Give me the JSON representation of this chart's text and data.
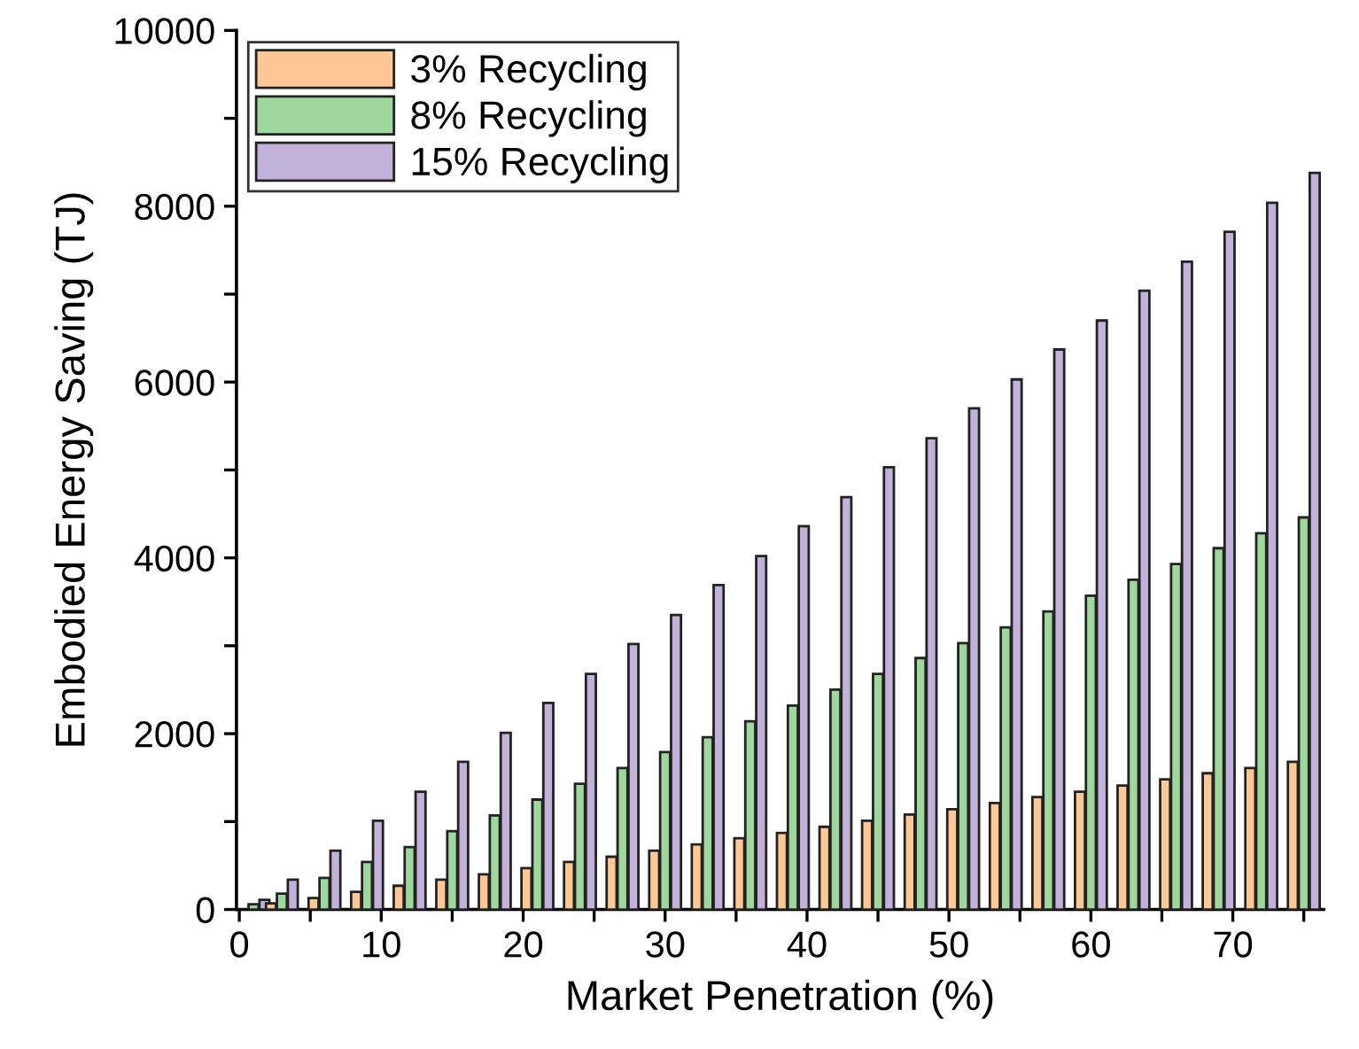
{
  "chart_data": {
    "type": "bar",
    "xlabel": "Market Penetration (%)",
    "ylabel": "Embodied Energy Saving (TJ)",
    "x": [
      1,
      3,
      6,
      9,
      12,
      15,
      18,
      21,
      24,
      27,
      30,
      33,
      36,
      39,
      42,
      45,
      48,
      51,
      54,
      57,
      60,
      63,
      66,
      69,
      72,
      75
    ],
    "series": [
      {
        "name": "3% Recycling",
        "color": "#fdc896",
        "values": [
          null,
          70,
          130,
          200,
          270,
          340,
          400,
          470,
          540,
          600,
          670,
          740,
          810,
          870,
          940,
          1010,
          1080,
          1140,
          1210,
          1280,
          1340,
          1410,
          1480,
          1550,
          1610,
          1680
        ]
      },
      {
        "name": "8% Recycling",
        "color": "#9fd89c",
        "values": [
          60,
          180,
          360,
          540,
          710,
          890,
          1070,
          1250,
          1430,
          1610,
          1790,
          1960,
          2140,
          2320,
          2500,
          2680,
          2860,
          3030,
          3210,
          3390,
          3570,
          3750,
          3930,
          4110,
          4280,
          4460
        ]
      },
      {
        "name": "15% Recycling",
        "color": "#c2b1d9",
        "values": [
          110,
          340,
          670,
          1010,
          1340,
          1680,
          2010,
          2350,
          2680,
          3020,
          3350,
          3690,
          4020,
          4360,
          4690,
          5030,
          5360,
          5700,
          6030,
          6370,
          6700,
          7040,
          7370,
          7710,
          8040,
          8380
        ]
      }
    ],
    "xlim": [
      -0.2,
      76.4
    ],
    "ylim": [
      0,
      10000
    ],
    "xticks": [
      0,
      {
        "value": 5,
        "label": null
      },
      10,
      {
        "value": 15,
        "label": null
      },
      20,
      {
        "value": 25,
        "label": null
      },
      30,
      {
        "value": 35,
        "label": null
      },
      40,
      {
        "value": 45,
        "label": null
      },
      50,
      {
        "value": 55,
        "label": null
      },
      60,
      {
        "value": 65,
        "label": null
      },
      70,
      {
        "value": 75,
        "label": null
      }
    ],
    "yticks": [
      0,
      {
        "value": 1000,
        "label": null
      },
      2000,
      {
        "value": 3000,
        "label": null
      },
      4000,
      {
        "value": 5000,
        "label": null
      },
      6000,
      {
        "value": 7000,
        "label": null
      },
      8000,
      {
        "value": 9000,
        "label": null
      },
      10000
    ],
    "legend": "top left",
    "grid": false
  }
}
